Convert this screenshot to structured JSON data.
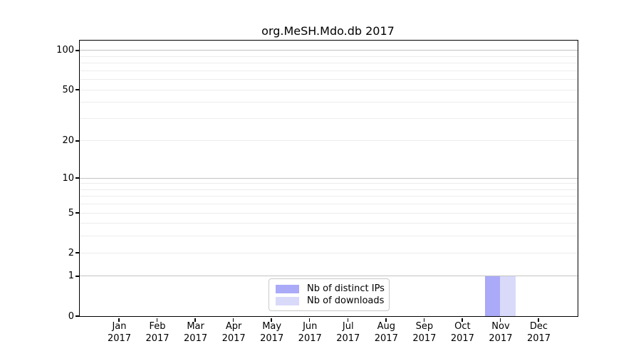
{
  "chart_data": {
    "type": "bar",
    "title": "org.MeSH.Mdo.db 2017",
    "categories": [
      "Jan",
      "Feb",
      "Mar",
      "Apr",
      "May",
      "Jun",
      "Jul",
      "Aug",
      "Sep",
      "Oct",
      "Nov",
      "Dec"
    ],
    "category_year": "2017",
    "series": [
      {
        "name": "Nb of distinct IPs",
        "color": "#aaaaf8",
        "values": [
          0,
          0,
          0,
          0,
          0,
          0,
          0,
          0,
          0,
          0,
          1,
          0
        ]
      },
      {
        "name": "Nb of downloads",
        "color": "#d9d9fa",
        "values": [
          0,
          0,
          0,
          0,
          0,
          0,
          0,
          0,
          0,
          0,
          1,
          0
        ]
      }
    ],
    "xlabel": "",
    "ylabel": "",
    "yscale": "log1p",
    "ylim": [
      0,
      119
    ],
    "yticks": [
      0,
      1,
      2,
      5,
      10,
      20,
      50,
      100
    ],
    "grid": {
      "major_lines": [
        1,
        10,
        100
      ],
      "minor_lines": [
        2,
        3,
        4,
        5,
        6,
        7,
        8,
        9,
        20,
        30,
        40,
        50,
        60,
        70,
        80,
        90
      ],
      "major_color": "#c2c2c2",
      "minor_color": "#ececec"
    },
    "legend": {
      "position": "lower center"
    },
    "colors": {
      "axis": "#000000",
      "background": "#ffffff"
    }
  }
}
